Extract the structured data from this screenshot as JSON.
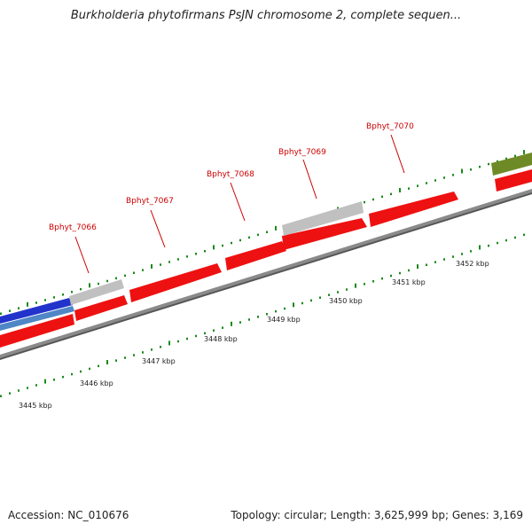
{
  "title": "Burkholderia phytofirmans PsJN chromosome 2, complete sequen...",
  "footer": {
    "accession": "Accession: NC_010676",
    "summary": "Topology: circular; Length: 3,625,999 bp; Genes: 3,169"
  },
  "colors": {
    "gene_forward": "#ee1111",
    "gene_other": "#c0c0c0",
    "backbone": "#8a8a8a",
    "ticks": "#1a8a1a",
    "blue_feature": "#2233cc",
    "steel_feature": "#4f86c6",
    "olive_feature": "#6e8a26",
    "gene_label": "#cc0000"
  },
  "genes": [
    {
      "id": "Bphyt_7066"
    },
    {
      "id": "Bphyt_7067"
    },
    {
      "id": "Bphyt_7068"
    },
    {
      "id": "Bphyt_7069"
    },
    {
      "id": "Bphyt_7070"
    }
  ],
  "kbp_labels": [
    "3445 kbp",
    "3446 kbp",
    "3447 kbp",
    "3448 kbp",
    "3449 kbp",
    "3450 kbp",
    "3451 kbp",
    "3452 kbp"
  ]
}
